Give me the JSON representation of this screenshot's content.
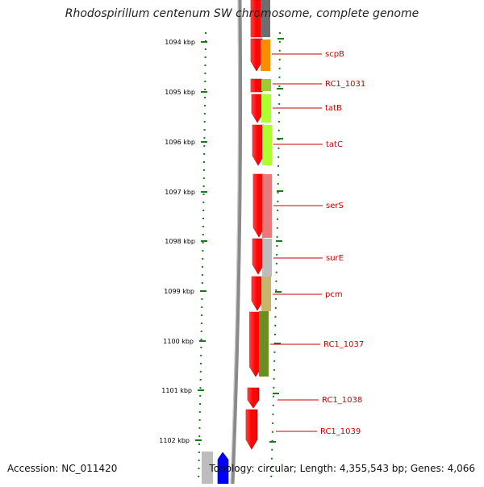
{
  "title": "Rhodospirillum centenum SW chromosome, complete genome",
  "accession": "Accession: NC_011420",
  "topology": "Topology: circular; Length: 4,355,543 bp; Genes: 4,066",
  "scale_color": "#1a7a1a",
  "gene_label_color": "#cc0000",
  "ticks": [
    "1094 kbp",
    "1095 kbp",
    "1096 kbp",
    "1097 kbp",
    "1098 kbp",
    "1099 kbp",
    "1100 kbp",
    "1101 kbp",
    "1102 kbp"
  ],
  "genes": [
    {
      "name": "scpB",
      "color": "#ff8c00"
    },
    {
      "name": "RC1_1031",
      "color": "#9acd32"
    },
    {
      "name": "tatB",
      "color": "#adff2f"
    },
    {
      "name": "tatC",
      "color": "#adff2f"
    },
    {
      "name": "serS",
      "color": "#e9797b"
    },
    {
      "name": "surE",
      "color": "#bdbdbd"
    },
    {
      "name": "pcm",
      "color": "#c8b46a"
    },
    {
      "name": "RC1_1037",
      "color": "#6b8e23"
    },
    {
      "name": "RC1_1038",
      "color": "#ff0000"
    },
    {
      "name": "RC1_1039",
      "color": "#ff0000"
    }
  ]
}
